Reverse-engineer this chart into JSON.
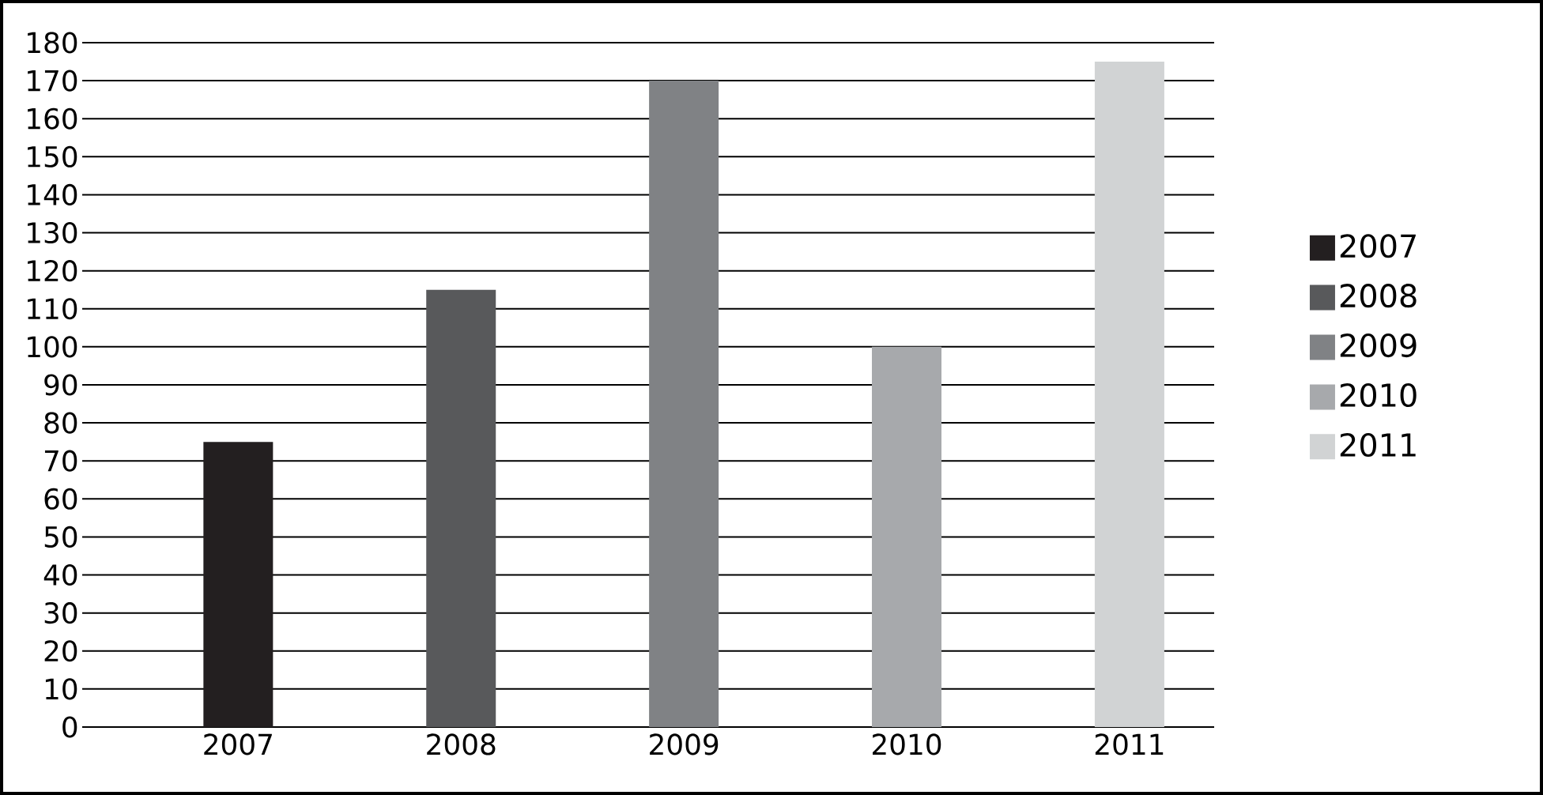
{
  "chart_data": {
    "type": "bar",
    "categories": [
      "2007",
      "2008",
      "2009",
      "2010",
      "2011"
    ],
    "series": [
      {
        "name": "2007",
        "color": "#231f20",
        "values": [
          75,
          null,
          null,
          null,
          null
        ]
      },
      {
        "name": "2008",
        "color": "#58595b",
        "values": [
          null,
          115,
          null,
          null,
          null
        ]
      },
      {
        "name": "2009",
        "color": "#808285",
        "values": [
          null,
          null,
          170,
          null,
          null
        ]
      },
      {
        "name": "2010",
        "color": "#a7a9ac",
        "values": [
          null,
          null,
          null,
          100,
          null
        ]
      },
      {
        "name": "2011",
        "color": "#d1d3d4",
        "values": [
          null,
          null,
          null,
          null,
          175
        ]
      }
    ],
    "ylim": [
      0,
      180
    ],
    "yticks": [
      0,
      10,
      20,
      30,
      40,
      50,
      60,
      70,
      80,
      90,
      100,
      110,
      120,
      130,
      140,
      150,
      160,
      170,
      180
    ],
    "grid": "y",
    "legend": "right"
  }
}
